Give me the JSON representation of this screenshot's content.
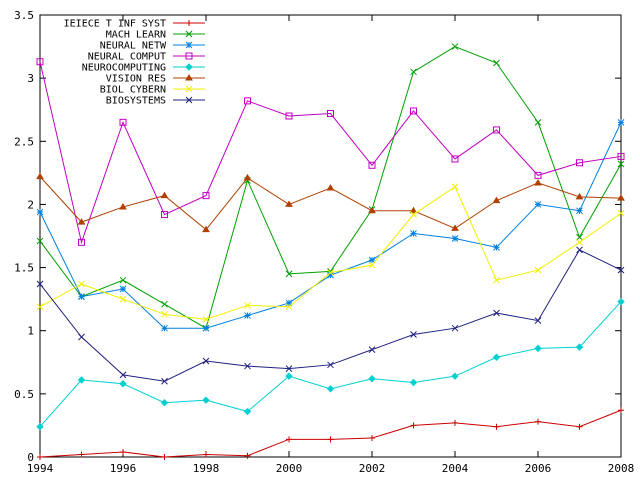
{
  "chart_data": {
    "type": "line",
    "title": "",
    "xlabel": "",
    "ylabel": "",
    "xlim": [
      1994,
      2008
    ],
    "ylim": [
      0,
      3.5
    ],
    "x_ticks": [
      "1994",
      "1996",
      "1998",
      "2000",
      "2002",
      "2004",
      "2006",
      "2008"
    ],
    "y_ticks": [
      "0",
      "0.5",
      "1",
      "1.5",
      "2",
      "2.5",
      "3",
      "3.5"
    ],
    "grid": false,
    "legend_position": "top-left",
    "x": [
      1994,
      1995,
      1996,
      1997,
      1998,
      1999,
      2000,
      2001,
      2002,
      2003,
      2004,
      2005,
      2006,
      2007,
      2008
    ],
    "series": [
      {
        "name": "IEIECE T INF SYST",
        "color": "#cc0000",
        "marker": "plus",
        "values": [
          0.0,
          0.02,
          0.04,
          0.0,
          0.02,
          0.01,
          0.14,
          0.14,
          0.15,
          0.25,
          0.27,
          0.24,
          0.28,
          0.24,
          0.37
        ]
      },
      {
        "name": "MACH LEARN",
        "color": "#00a000",
        "marker": "cross",
        "values": [
          1.71,
          1.27,
          1.4,
          1.21,
          1.02,
          2.19,
          1.45,
          1.47,
          1.96,
          3.05,
          3.25,
          3.12,
          2.65,
          1.74,
          2.32
        ]
      },
      {
        "name": "NEURAL NETW",
        "color": "#0080e0",
        "marker": "star",
        "values": [
          1.94,
          1.27,
          1.33,
          1.02,
          1.02,
          1.12,
          1.22,
          1.44,
          1.56,
          1.77,
          1.73,
          1.66,
          2.0,
          1.95,
          2.65
        ]
      },
      {
        "name": "NEURAL COMPUT",
        "color": "#c000c0",
        "marker": "square",
        "values": [
          3.13,
          1.7,
          2.65,
          1.92,
          2.07,
          2.82,
          2.7,
          2.72,
          2.31,
          2.74,
          2.36,
          2.59,
          2.23,
          2.33,
          2.38
        ]
      },
      {
        "name": "NEUROCOMPUTING",
        "color": "#00d0d0",
        "marker": "diamond",
        "values": [
          0.24,
          0.61,
          0.58,
          0.43,
          0.45,
          0.36,
          0.64,
          0.54,
          0.62,
          0.59,
          0.64,
          0.79,
          0.86,
          0.87,
          1.23
        ]
      },
      {
        "name": "VISION RES",
        "color": "#b04000",
        "marker": "triangle",
        "values": [
          2.22,
          1.86,
          1.98,
          2.07,
          1.8,
          2.21,
          2.0,
          2.13,
          1.95,
          1.95,
          1.81,
          2.03,
          2.17,
          2.06,
          2.05
        ]
      },
      {
        "name": "BIOL CYBERN",
        "color": "#f0f000",
        "marker": "cross",
        "values": [
          1.19,
          1.37,
          1.25,
          1.13,
          1.09,
          1.2,
          1.19,
          1.46,
          1.52,
          1.92,
          2.14,
          1.4,
          1.48,
          1.7,
          1.93
        ]
      },
      {
        "name": "BIOSYSTEMS",
        "color": "#202080",
        "marker": "cross",
        "values": [
          1.37,
          0.95,
          0.65,
          0.6,
          0.76,
          0.72,
          0.7,
          0.73,
          0.85,
          0.97,
          1.02,
          1.14,
          1.08,
          1.64,
          1.48
        ]
      }
    ]
  }
}
